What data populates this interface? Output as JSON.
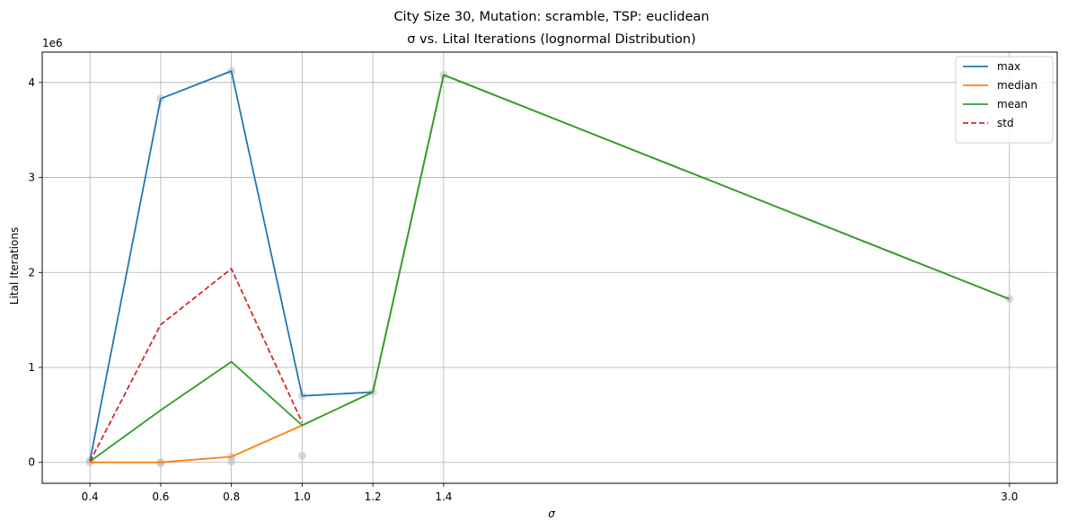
{
  "chart_data": {
    "type": "line",
    "title": "City Size 30, Mutation: scramble, TSP: euclidean",
    "subtitle": "σ vs. Lital Iterations (lognormal Distribution)",
    "xlabel": "σ",
    "ylabel": "Lital Iterations",
    "y_offset_label": "1e6",
    "x_ticks": [
      0.4,
      0.6,
      0.8,
      1.0,
      1.2,
      1.4,
      3.0
    ],
    "x_tick_labels": [
      "0.4",
      "0.6",
      "0.8",
      "1.0",
      "1.2",
      "1.4",
      "3.0"
    ],
    "y_ticks": [
      0,
      1,
      2,
      3,
      4
    ],
    "y_tick_labels": [
      "0",
      "1",
      "2",
      "3",
      "4"
    ],
    "xlim": [
      0.265,
      3.135
    ],
    "ylim": [
      -0.22,
      4.32
    ],
    "y_unit": "millions",
    "grid": true,
    "legend_position": "upper-right",
    "x": [
      0.4,
      0.6,
      0.8,
      1.0,
      1.2,
      1.4,
      3.0
    ],
    "series": [
      {
        "name": "max",
        "color": "#1f77b4",
        "dash": "solid",
        "x": [
          0.4,
          0.6,
          0.8,
          1.0,
          1.2,
          1.4,
          3.0
        ],
        "values": [
          0.02,
          3.83,
          4.12,
          0.7,
          0.74,
          4.08,
          1.72
        ]
      },
      {
        "name": "median",
        "color": "#ff7f0e",
        "dash": "solid",
        "x": [
          0.4,
          0.6,
          0.8,
          1.0,
          1.2,
          1.4,
          3.0
        ],
        "values": [
          0.0,
          0.0,
          0.06,
          0.39,
          0.74,
          4.08,
          1.72
        ]
      },
      {
        "name": "mean",
        "color": "#2ca02c",
        "dash": "solid",
        "x": [
          0.4,
          0.6,
          0.8,
          1.0,
          1.2,
          1.4,
          3.0
        ],
        "values": [
          0.01,
          0.55,
          1.06,
          0.39,
          0.74,
          4.08,
          1.72
        ]
      },
      {
        "name": "std",
        "color": "#d62728",
        "dash": "dashed",
        "x": [
          0.4,
          0.6,
          0.8,
          1.0
        ],
        "values": [
          0.01,
          1.45,
          2.04,
          0.42
        ]
      }
    ],
    "scatter_points": {
      "color": "#bbbbbb",
      "points": [
        [
          0.4,
          0.0
        ],
        [
          0.4,
          0.02
        ],
        [
          0.6,
          3.83
        ],
        [
          0.6,
          0.0
        ],
        [
          0.6,
          -0.01
        ],
        [
          0.8,
          4.12
        ],
        [
          0.8,
          0.06
        ],
        [
          0.8,
          0.01
        ],
        [
          1.0,
          0.7
        ],
        [
          1.0,
          0.07
        ],
        [
          1.2,
          0.74
        ],
        [
          1.4,
          4.08
        ],
        [
          3.0,
          1.72
        ]
      ]
    }
  }
}
